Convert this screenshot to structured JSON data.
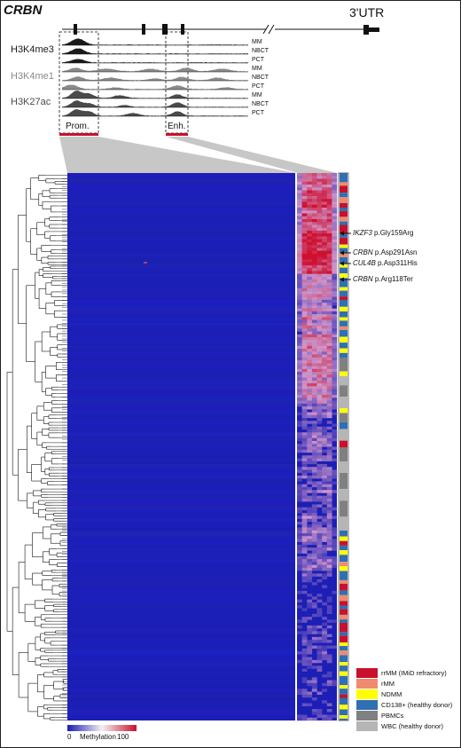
{
  "figure": {
    "gene": "CRBN",
    "utr_label": "3'UTR",
    "tracks": [
      {
        "mark": "H3K4me3",
        "color": "#1a1a1a",
        "tissues": [
          "MM",
          "NBCT",
          "PCT"
        ]
      },
      {
        "mark": "H3K4me1",
        "color": "#8a8a8a",
        "tissues": [
          "MM",
          "NBCT",
          "PCT"
        ]
      },
      {
        "mark": "H3K27ac",
        "color": "#4a4a4a",
        "tissues": [
          "MM",
          "NBCT",
          "PCT"
        ]
      }
    ],
    "regions": {
      "promoter": "Prom.",
      "enhancer": "Enh."
    },
    "annotations": [
      {
        "gene": "IKZF3",
        "variant": "p.Gly159Arg"
      },
      {
        "gene": "CRBN",
        "variant": "p.Asp291Asn"
      },
      {
        "gene": "CUL4B",
        "variant": "p.Asp311His"
      },
      {
        "gene": "CRBN",
        "variant": "p.Arg118Ter"
      }
    ],
    "legend": [
      {
        "label": "rrMM (IMiD refractory)",
        "color": "#c8102e"
      },
      {
        "label": "rMM",
        "color": "#f08a6e"
      },
      {
        "label": "NDMM",
        "color": "#ffff00"
      },
      {
        "label": "CD138+ (healthy donor)",
        "color": "#2f6fb3"
      },
      {
        "label": "PBMCs",
        "color": "#808080"
      },
      {
        "label": "WBC (healthy donor)",
        "color": "#b5b5b5"
      }
    ],
    "colorscale": {
      "min": "0",
      "label": "Methylation",
      "max": "100",
      "low_color": "#1a1ab4",
      "high_color": "#c8102e"
    }
  }
}
